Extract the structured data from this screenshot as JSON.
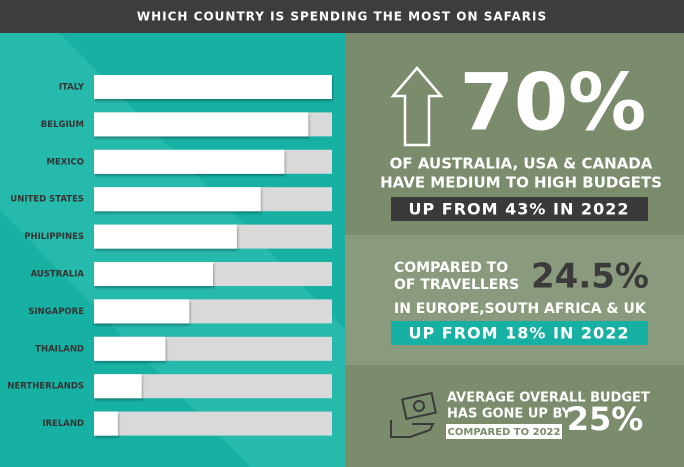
{
  "header": {
    "title": "WHICH COUNTRY IS SPENDING THE MOST ON SAFARIS"
  },
  "chart_data": {
    "type": "hbar",
    "categories": [
      "ITALY",
      "BELGIUM",
      "MEXICO",
      "UNITED STATES",
      "PHILIPPINES",
      "AUSTRALIA",
      "SINGAPORE",
      "THAILAND",
      "NERTHERLANDS",
      "IRELAND"
    ],
    "values": [
      100,
      90,
      80,
      70,
      60,
      50,
      40,
      30,
      20,
      10
    ],
    "xlim": [
      0,
      100
    ],
    "color": "#ffffff",
    "track_color": "#d9d9d9"
  },
  "stats": {
    "top": {
      "value": "70%",
      "line1": "OF AUSTRALIA, USA & CANADA",
      "line2": "HAVE MEDIUM TO HIGH BUDGETS",
      "badge": "UP FROM 43% IN 2022"
    },
    "middle": {
      "line1": "COMPARED TO",
      "line2": "OF TRAVELLERS",
      "value": "24.5%",
      "line3": "IN EUROPE,SOUTH AFRICA & UK",
      "badge": "UP FROM 18% IN 2022"
    },
    "bottom": {
      "line1": "AVERAGE OVERALL BUDGET",
      "line2": "HAS GONE UP BY",
      "badge": "COMPARED TO 2022",
      "value": "25%"
    }
  }
}
